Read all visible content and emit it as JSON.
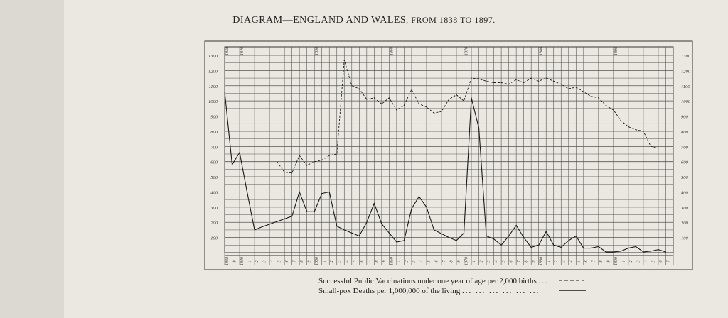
{
  "legend": {
    "leader_vacc": "...",
    "leader_pox": "...   ...   ...   ...   ...   ..."
  },
  "chart_data": {
    "type": "line",
    "title": "DIAGRAM—ENGLAND AND WALES",
    "subtitle": ", FROM 1838 TO 1897.",
    "xlim": [
      1838,
      1897
    ],
    "ylim": [
      0,
      1300
    ],
    "yticks": [
      100,
      200,
      300,
      400,
      500,
      600,
      700,
      800,
      900,
      1000,
      1100,
      1200,
      1300
    ],
    "ytick_labels": [
      "100",
      "200",
      "300",
      "400",
      "500",
      "600",
      "700",
      "800",
      "900",
      "1000",
      "1100",
      "1200",
      "1300"
    ],
    "ytick_labels_right": [
      "100",
      "200",
      "300",
      "400",
      "500",
      "600",
      "700",
      "800",
      "900",
      "1000",
      "1100",
      "1200",
      "1300"
    ],
    "top_labels": [
      {
        "x": 1838,
        "label": "1838"
      },
      {
        "x": 1840,
        "label": "1840"
      },
      {
        "x": 1850,
        "label": "1850"
      },
      {
        "x": 1860,
        "label": "1860"
      },
      {
        "x": 1870,
        "label": "1870"
      },
      {
        "x": 1880,
        "label": "1880"
      },
      {
        "x": 1890,
        "label": "1890"
      }
    ],
    "bottom_labels": [
      "1838",
      "9",
      "1840",
      "1",
      "2",
      "3",
      "4",
      "5",
      "6",
      "7",
      "8",
      "9",
      "1850",
      "1",
      "2",
      "3",
      "4",
      "5",
      "6",
      "7",
      "8",
      "9",
      "1860",
      "1",
      "2",
      "3",
      "4",
      "5",
      "6",
      "7",
      "8",
      "9",
      "1870",
      "1",
      "2",
      "3",
      "4",
      "5",
      "6",
      "7",
      "8",
      "9",
      "1880",
      "1",
      "2",
      "3",
      "4",
      "5",
      "6",
      "7",
      "8",
      "9",
      "1890",
      "1",
      "2",
      "3",
      "4",
      "5",
      "6",
      "7"
    ],
    "grid": true,
    "series": [
      {
        "name": "Successful Public Vaccinations under one year of age per 2,000 births",
        "style": "dashed",
        "x": [
          1845,
          1846,
          1847,
          1848,
          1849,
          1850,
          1851,
          1852,
          1853,
          1854,
          1855,
          1856,
          1857,
          1858,
          1859,
          1860,
          1861,
          1862,
          1863,
          1864,
          1865,
          1866,
          1867,
          1868,
          1869,
          1870,
          1871,
          1872,
          1873,
          1874,
          1875,
          1876,
          1877,
          1878,
          1879,
          1880,
          1881,
          1882,
          1883,
          1884,
          1885,
          1886,
          1887,
          1888,
          1889,
          1890,
          1891,
          1892,
          1893,
          1894,
          1895,
          1896,
          1897
        ],
        "values": [
          600,
          530,
          525,
          640,
          575,
          600,
          610,
          640,
          650,
          1270,
          1100,
          1080,
          1010,
          1020,
          980,
          1020,
          940,
          970,
          1075,
          980,
          960,
          920,
          930,
          1010,
          1040,
          1000,
          1150,
          1145,
          1130,
          1120,
          1120,
          1110,
          1140,
          1120,
          1150,
          1130,
          1150,
          1130,
          1110,
          1080,
          1090,
          1060,
          1030,
          1020,
          970,
          940,
          870,
          830,
          810,
          800,
          700,
          690,
          690
        ]
      },
      {
        "name": "Small-pox Deaths per 1,000,000 of the living",
        "style": "solid",
        "x": [
          1838,
          1839,
          1840,
          1841,
          1842,
          1843,
          1847,
          1848,
          1849,
          1850,
          1851,
          1852,
          1853,
          1854,
          1855,
          1856,
          1857,
          1858,
          1859,
          1860,
          1861,
          1862,
          1863,
          1864,
          1865,
          1866,
          1867,
          1868,
          1869,
          1870,
          1871,
          1872,
          1873,
          1874,
          1875,
          1876,
          1877,
          1878,
          1879,
          1880,
          1881,
          1882,
          1883,
          1884,
          1885,
          1886,
          1887,
          1888,
          1889,
          1890,
          1891,
          1892,
          1893,
          1894,
          1895,
          1896,
          1897
        ],
        "values": [
          1060,
          580,
          660,
          400,
          150,
          170,
          240,
          400,
          270,
          270,
          390,
          400,
          175,
          150,
          130,
          110,
          200,
          325,
          190,
          130,
          70,
          80,
          290,
          370,
          300,
          150,
          125,
          100,
          80,
          130,
          1020,
          820,
          110,
          90,
          50,
          110,
          180,
          100,
          35,
          50,
          140,
          50,
          35,
          80,
          110,
          30,
          30,
          40,
          5,
          5,
          10,
          30,
          40,
          5,
          10,
          20,
          5
        ]
      }
    ]
  }
}
